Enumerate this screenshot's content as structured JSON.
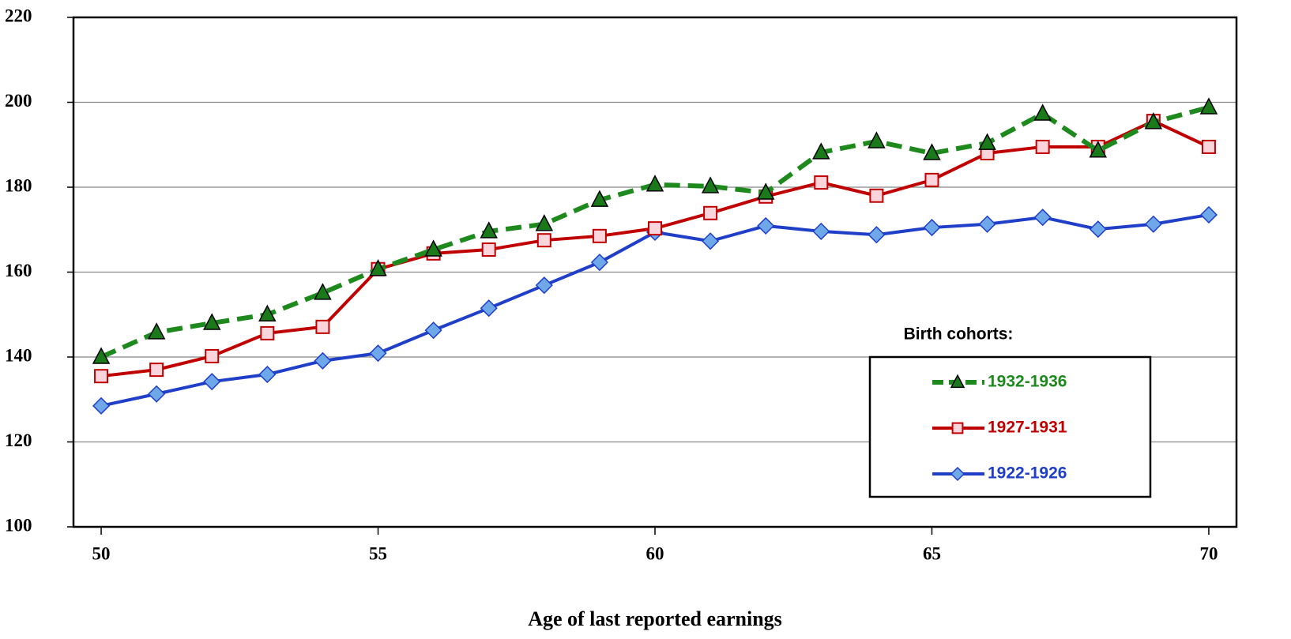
{
  "chart_data": {
    "type": "line",
    "x_label": "Age of last reported earnings",
    "x": [
      50,
      51,
      52,
      53,
      54,
      55,
      56,
      57,
      58,
      59,
      60,
      61,
      62,
      63,
      64,
      65,
      66,
      67,
      68,
      69,
      70
    ],
    "xlim": [
      49.5,
      70.5
    ],
    "xticks": [
      50,
      55,
      60,
      65,
      70
    ],
    "ylim": [
      100,
      220
    ],
    "yticks": [
      100,
      120,
      140,
      160,
      180,
      200,
      220
    ],
    "grid": true,
    "legend": "lower right",
    "legend_title": "Birth cohorts:",
    "series": [
      {
        "name": "1932-1936",
        "color": "#1e8a1e",
        "marker": "triangle",
        "marker_fill": "#1a7a1a",
        "dashed": true,
        "values": [
          140.0,
          145.8,
          148.0,
          150.0,
          155.1,
          160.7,
          165.3,
          169.6,
          171.3,
          177.0,
          180.6,
          180.2,
          178.7,
          188.2,
          190.8,
          188.0,
          190.4,
          197.3,
          188.6,
          195.3,
          198.8
        ]
      },
      {
        "name": "1927-1931",
        "color": "#c00000",
        "marker": "square",
        "marker_fill": "#fcd5dc",
        "dashed": false,
        "values": [
          135.5,
          137.0,
          140.2,
          145.6,
          147.1,
          160.7,
          164.4,
          165.3,
          167.5,
          168.5,
          170.3,
          173.9,
          177.8,
          181.1,
          178.0,
          181.7,
          188.0,
          189.5,
          189.5,
          195.6,
          189.5
        ]
      },
      {
        "name": "1922-1926",
        "color": "#1f3fc8",
        "marker": "diamond",
        "marker_fill": "#6fa8e8",
        "dashed": false,
        "values": [
          128.5,
          131.3,
          134.2,
          135.9,
          139.1,
          140.9,
          146.3,
          151.5,
          156.9,
          162.3,
          169.4,
          167.3,
          170.9,
          169.6,
          168.8,
          170.5,
          171.3,
          172.9,
          170.1,
          171.3,
          173.5
        ]
      }
    ]
  }
}
